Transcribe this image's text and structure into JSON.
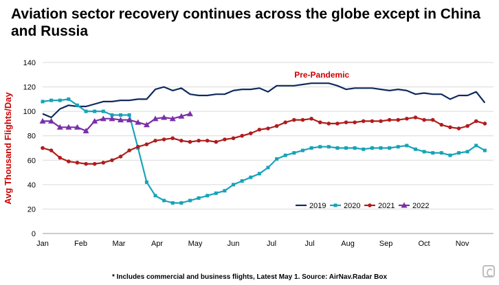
{
  "header": {
    "title": "Aviation sector recovery continues across the globe except in China and Russia"
  },
  "footnote": "* Includes commercial and business flights, Latest May 1. Source: AirNav.Radar Box",
  "chart_data": {
    "type": "line",
    "title": "Aviation sector recovery continues across the globe except in China and Russia",
    "xlabel": "",
    "ylabel": "Avg Thousand Flights/Day",
    "ylim": [
      0,
      140
    ],
    "yticks": [
      0,
      20,
      40,
      60,
      80,
      100,
      120,
      140
    ],
    "xlim": [
      1,
      53
    ],
    "xticks": [
      {
        "label": "Jan",
        "week": 1
      },
      {
        "label": "Feb",
        "week": 5.4
      },
      {
        "label": "Mar",
        "week": 9.8
      },
      {
        "label": "Apr",
        "week": 14.2
      },
      {
        "label": "May",
        "week": 18.6
      },
      {
        "label": "Jun",
        "week": 23.0
      },
      {
        "label": "Jul",
        "week": 27.4
      },
      {
        "label": "Jul",
        "week": 31.8
      },
      {
        "label": "Aug",
        "week": 36.2
      },
      {
        "label": "Sep",
        "week": 40.6
      },
      {
        "label": "Oct",
        "week": 45.0
      },
      {
        "label": "Nov",
        "week": 49.4
      }
    ],
    "grid": "horizontal",
    "legend_position": "bottom-right",
    "annotation": {
      "text": "Pre-Pandemic",
      "week": 33.2,
      "value": 130,
      "color": "#cc0000"
    },
    "series": [
      {
        "name": "2019",
        "color": "#0f2a5e",
        "marker": "none",
        "values": [
          98,
          95,
          102,
          105,
          104,
          104,
          106,
          108,
          108,
          109,
          109,
          110,
          110,
          118,
          120,
          117,
          119,
          114,
          113,
          113,
          114,
          114,
          117,
          118,
          118,
          119,
          116,
          121,
          121,
          121,
          122,
          123,
          123,
          123,
          121,
          118,
          119,
          119,
          119,
          118,
          117,
          118,
          117,
          114,
          115,
          114,
          114,
          110,
          113,
          113,
          116,
          107
        ]
      },
      {
        "name": "2020",
        "color": "#17a3b8",
        "marker": "square",
        "values": [
          108,
          109,
          109,
          110,
          105,
          100,
          100,
          100,
          97,
          97,
          97,
          70,
          42,
          31,
          27,
          25,
          25,
          27,
          29,
          31,
          33,
          35,
          40,
          43,
          46,
          49,
          54,
          61,
          64,
          66,
          68,
          70,
          71,
          71,
          70,
          70,
          70,
          69,
          70,
          70,
          70,
          71,
          72,
          69,
          67,
          66,
          66,
          64,
          66,
          67,
          72,
          68
        ]
      },
      {
        "name": "2021",
        "color": "#b01c1c",
        "marker": "circle",
        "values": [
          70,
          68,
          62,
          59,
          58,
          57,
          57,
          58,
          60,
          63,
          68,
          71,
          73,
          76,
          77,
          78,
          76,
          75,
          76,
          76,
          75,
          77,
          78,
          80,
          82,
          85,
          86,
          88,
          91,
          93,
          93,
          94,
          91,
          90,
          90,
          91,
          91,
          92,
          92,
          92,
          93,
          93,
          94,
          95,
          93,
          93,
          89,
          87,
          86,
          88,
          92,
          90
        ]
      },
      {
        "name": "2022",
        "color": "#7a2fa8",
        "marker": "triangle",
        "values": [
          92,
          92,
          87,
          87,
          87,
          84,
          92,
          94,
          94,
          93,
          93,
          91,
          89,
          94,
          95,
          94,
          96,
          98
        ]
      }
    ]
  }
}
